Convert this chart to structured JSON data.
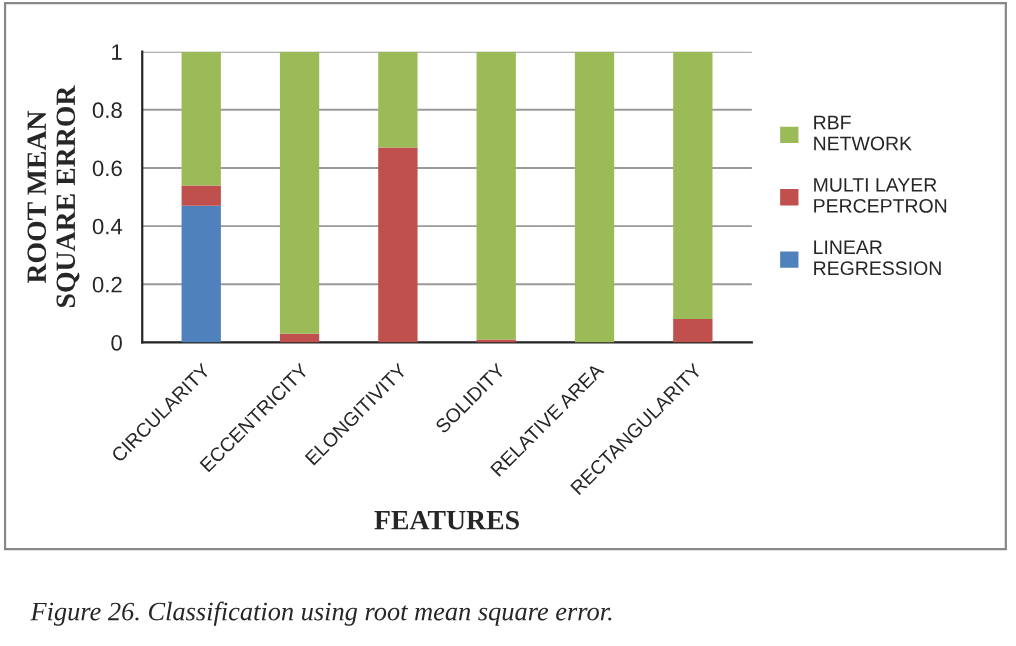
{
  "chart_data": {
    "type": "bar",
    "stacked": true,
    "xlabel": "FEATURES",
    "ylabel": "ROOT MEAN\nSQUARE ERROR",
    "categories": [
      "CIRCULARITY",
      "ECCENTRICITY",
      "ELONGITIVITY",
      "SOLIDITY",
      "RELATIVE AREA",
      "RECTANGULARITY"
    ],
    "series": [
      {
        "name": "LINEAR\nREGRESSION",
        "color": "#4f81bd",
        "values": [
          0.47,
          0,
          0,
          0,
          0,
          0
        ]
      },
      {
        "name": "MULTI LAYER\nPERCEPTRON",
        "color": "#c0504d",
        "values": [
          0.07,
          0.03,
          0.67,
          0.01,
          0,
          0.08
        ]
      },
      {
        "name": "RBF\nNETWORK",
        "color": "#9bbb59",
        "values": [
          0.46,
          0.97,
          0.33,
          0.99,
          1,
          0.92
        ]
      }
    ],
    "ylim": [
      0,
      1
    ],
    "yticks": [
      0,
      {
        "value": 0.2,
        "label": "0.2"
      },
      {
        "value": 0.4,
        "label": "0.4"
      },
      {
        "value": 0.6,
        "label": "0.6"
      },
      {
        "value": 0.8,
        "label": "0.8"
      },
      1
    ],
    "grid": "y",
    "legend": "right",
    "annotations": [
      "Figure 26. Classification using root mean square error."
    ]
  }
}
